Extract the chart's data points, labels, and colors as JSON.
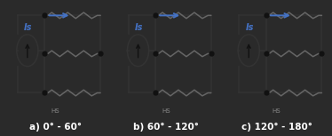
{
  "bg_color": "#2a2a2a",
  "panel_bg": "#ffffff",
  "panel_labels": [
    "a) 0° - 60°",
    "b) 60° - 120°",
    "c) 120° - 180°"
  ],
  "label_color": "#ffffff",
  "label_fontsize": 7.5,
  "is_color": "#4472c4",
  "is_label": "Is",
  "arrow_color": "#4472c4",
  "resistor_color": "#666666",
  "wire_color": "#333333",
  "dot_color": "#111111",
  "hs_labels": [
    "HS",
    "HS",
    "HS"
  ],
  "hs_color": "#888888"
}
